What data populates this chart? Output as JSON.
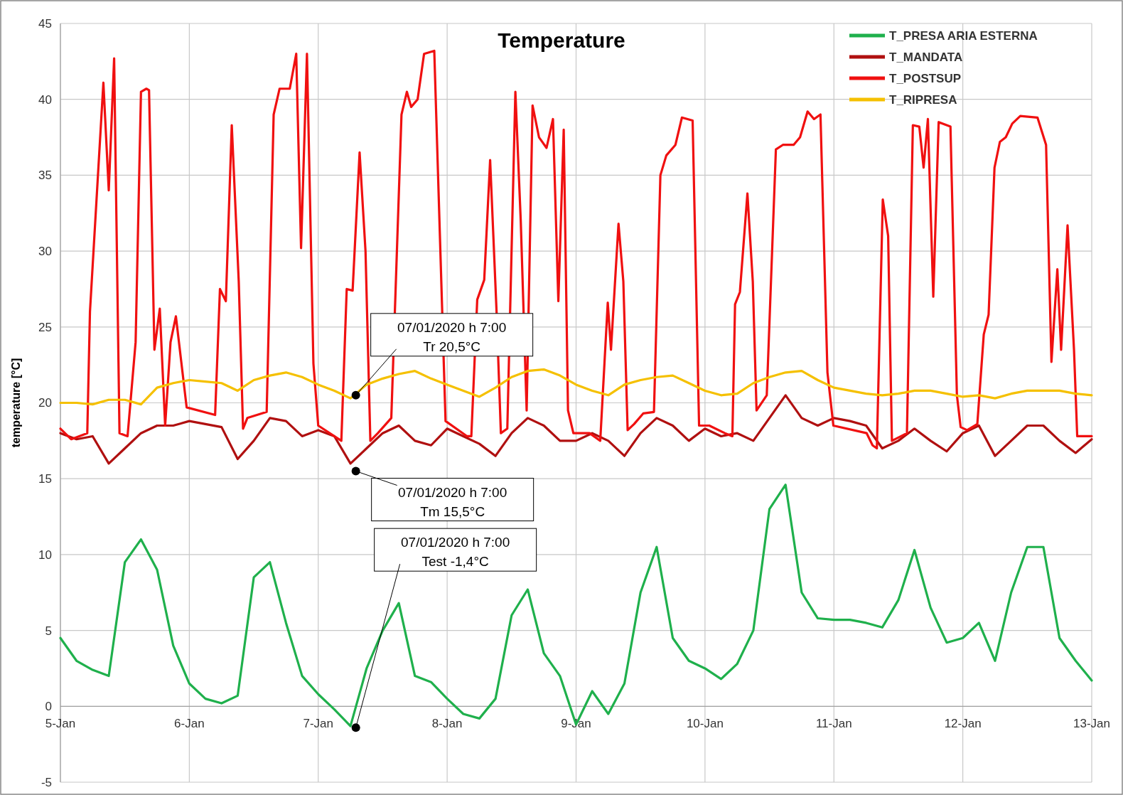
{
  "chart_data": {
    "type": "line",
    "title": "Temperature",
    "ylabel": "temperature [°C]",
    "x": [
      "2020-01-05T00:00",
      "2020-01-05T03:00",
      "2020-01-05T06:00",
      "2020-01-05T09:00",
      "2020-01-05T12:00",
      "2020-01-05T15:00",
      "2020-01-05T18:00",
      "2020-01-05T21:00",
      "2020-01-06T00:00",
      "2020-01-06T03:00",
      "2020-01-06T06:00",
      "2020-01-06T09:00",
      "2020-01-06T12:00",
      "2020-01-06T15:00",
      "2020-01-06T18:00",
      "2020-01-06T21:00",
      "2020-01-07T00:00",
      "2020-01-07T03:00",
      "2020-01-07T06:00",
      "2020-01-07T09:00",
      "2020-01-07T12:00",
      "2020-01-07T15:00",
      "2020-01-07T18:00",
      "2020-01-07T21:00",
      "2020-01-08T00:00",
      "2020-01-08T03:00",
      "2020-01-08T06:00",
      "2020-01-08T09:00",
      "2020-01-08T12:00",
      "2020-01-08T15:00",
      "2020-01-08T18:00",
      "2020-01-08T21:00",
      "2020-01-09T00:00",
      "2020-01-09T03:00",
      "2020-01-09T06:00",
      "2020-01-09T09:00",
      "2020-01-09T12:00",
      "2020-01-09T15:00",
      "2020-01-09T18:00",
      "2020-01-09T21:00",
      "2020-01-10T00:00",
      "2020-01-10T03:00",
      "2020-01-10T06:00",
      "2020-01-10T09:00",
      "2020-01-10T12:00",
      "2020-01-10T15:00",
      "2020-01-10T18:00",
      "2020-01-10T21:00",
      "2020-01-11T00:00",
      "2020-01-11T03:00",
      "2020-01-11T06:00",
      "2020-01-11T09:00",
      "2020-01-11T12:00",
      "2020-01-11T15:00",
      "2020-01-11T18:00",
      "2020-01-11T21:00",
      "2020-01-12T00:00",
      "2020-01-12T03:00",
      "2020-01-12T06:00",
      "2020-01-12T09:00",
      "2020-01-12T12:00",
      "2020-01-12T15:00",
      "2020-01-12T18:00",
      "2020-01-12T21:00",
      "2020-01-13T00:00"
    ],
    "series": [
      {
        "name": "T_PRESA ARIA ESTERNA",
        "color": "#1fb04c",
        "values": [
          4.5,
          3.0,
          2.4,
          2.0,
          9.5,
          11.0,
          9.0,
          4.0,
          1.5,
          0.5,
          0.2,
          0.7,
          8.5,
          9.5,
          5.5,
          2.0,
          0.8,
          -0.2,
          -1.3,
          2.5,
          5.0,
          6.8,
          2.0,
          1.6,
          0.5,
          -0.5,
          -0.8,
          0.5,
          6.0,
          7.7,
          3.5,
          2.0,
          -1.2,
          1.0,
          -0.5,
          1.5,
          7.5,
          10.5,
          4.5,
          3.0,
          2.5,
          1.8,
          2.8,
          5.0,
          13.0,
          14.6,
          7.5,
          5.8,
          5.7,
          5.7,
          5.5,
          5.2,
          7.0,
          10.3,
          6.5,
          4.2,
          4.5,
          5.5,
          3.0,
          7.5,
          10.5,
          10.5,
          4.5,
          3.0,
          1.7
        ]
      },
      {
        "name": "T_MANDATA",
        "color": "#b01010",
        "values": [
          18.0,
          17.6,
          17.8,
          16.0,
          17.0,
          18.0,
          18.5,
          18.5,
          18.8,
          18.6,
          18.4,
          16.3,
          17.5,
          19.0,
          18.8,
          17.8,
          18.2,
          17.8,
          16.0,
          17.0,
          18.0,
          18.5,
          17.5,
          17.2,
          18.3,
          17.8,
          17.3,
          16.5,
          18.0,
          19.0,
          18.5,
          17.5,
          17.5,
          18.0,
          17.5,
          16.5,
          18.0,
          19.0,
          18.5,
          17.5,
          18.3,
          17.8,
          18.0,
          17.5,
          19.0,
          20.5,
          19.0,
          18.5,
          19.0,
          18.8,
          18.5,
          17.0,
          17.5,
          18.3,
          17.5,
          16.8,
          18.0,
          18.5,
          16.5,
          17.5,
          18.5,
          18.5,
          17.5,
          16.7,
          17.6
        ]
      },
      {
        "name": "T_POSTSUP",
        "color": "#f01010",
        "x": [
          "2020-01-05T00:00",
          "2020-01-05T02:00",
          "2020-01-05T05:00",
          "2020-01-05T05:30",
          "2020-01-05T08:00",
          "2020-01-05T09:00",
          "2020-01-05T10:00",
          "2020-01-05T11:00",
          "2020-01-05T12:30",
          "2020-01-05T14:00",
          "2020-01-05T15:00",
          "2020-01-05T16:00",
          "2020-01-05T16:30",
          "2020-01-05T17:30",
          "2020-01-05T18:30",
          "2020-01-05T19:30",
          "2020-01-05T20:30",
          "2020-01-05T21:30",
          "2020-01-05T23:30",
          "2020-01-06T04:48",
          "2020-01-06T05:42",
          "2020-01-06T06:48",
          "2020-01-06T07:54",
          "2020-01-06T09:12",
          "2020-01-06T10:00",
          "2020-01-06T10:48",
          "2020-01-06T14:24",
          "2020-01-06T15:42",
          "2020-01-06T16:48",
          "2020-01-06T18:42",
          "2020-01-06T19:54",
          "2020-01-06T20:48",
          "2020-01-06T21:54",
          "2020-01-06T23:06",
          "2020-01-07T00:00",
          "2020-01-07T04:18",
          "2020-01-07T05:18",
          "2020-01-07T06:24",
          "2020-01-07T07:42",
          "2020-01-07T08:48",
          "2020-01-07T09:42",
          "2020-01-07T11:06",
          "2020-01-07T13:36",
          "2020-01-07T15:30",
          "2020-01-07T16:30",
          "2020-01-07T17:18",
          "2020-01-07T18:30",
          "2020-01-07T19:42",
          "2020-01-07T21:36",
          "2020-01-07T23:42",
          "2020-01-08T03:42",
          "2020-01-08T04:30",
          "2020-01-08T05:36",
          "2020-01-08T06:54",
          "2020-01-08T08:00",
          "2020-01-08T09:12",
          "2020-01-08T10:00",
          "2020-01-08T11:12",
          "2020-01-08T12:42",
          "2020-01-08T13:42",
          "2020-01-08T14:48",
          "2020-01-08T15:54",
          "2020-01-08T17:06",
          "2020-01-08T18:30",
          "2020-01-08T19:42",
          "2020-01-08T20:42",
          "2020-01-08T21:42",
          "2020-01-08T22:30",
          "2020-01-08T23:30",
          "2020-01-09T02:30",
          "2020-01-09T04:30",
          "2020-01-09T05:54",
          "2020-01-09T06:30",
          "2020-01-09T07:54",
          "2020-01-09T08:48",
          "2020-01-09T09:36",
          "2020-01-09T10:48",
          "2020-01-09T12:30",
          "2020-01-09T14:30",
          "2020-01-09T15:42",
          "2020-01-09T16:48",
          "2020-01-09T18:30",
          "2020-01-09T19:42",
          "2020-01-09T21:42",
          "2020-01-09T22:54",
          "2020-01-10T00:48",
          "2020-01-10T03:42",
          "2020-01-10T05:06",
          "2020-01-10T05:36",
          "2020-01-10T06:30",
          "2020-01-10T07:54",
          "2020-01-10T08:54",
          "2020-01-10T09:36",
          "2020-01-10T11:30",
          "2020-01-10T13:12",
          "2020-01-10T14:30",
          "2020-01-10T16:30",
          "2020-01-10T17:42",
          "2020-01-10T19:06",
          "2020-01-10T20:18",
          "2020-01-10T21:30",
          "2020-01-10T22:48",
          "2020-01-10T23:54",
          "2020-01-11T06:06",
          "2020-01-11T07:12",
          "2020-01-11T08:00",
          "2020-01-11T09:06",
          "2020-01-11T10:06",
          "2020-01-11T10:48",
          "2020-01-11T13:36",
          "2020-01-11T14:42",
          "2020-01-11T15:54",
          "2020-01-11T16:42",
          "2020-01-11T17:30",
          "2020-01-11T18:30",
          "2020-01-11T19:30",
          "2020-01-11T21:42",
          "2020-01-11T22:54",
          "2020-01-11T23:36",
          "2020-01-12T00:48",
          "2020-01-12T02:42",
          "2020-01-12T03:54",
          "2020-01-12T04:48",
          "2020-01-12T05:54",
          "2020-01-12T06:54",
          "2020-01-12T08:00",
          "2020-01-12T09:12",
          "2020-01-12T10:42",
          "2020-01-12T13:54",
          "2020-01-12T15:30",
          "2020-01-12T16:30",
          "2020-01-12T17:36",
          "2020-01-12T18:18",
          "2020-01-12T19:30",
          "2020-01-12T20:42",
          "2020-01-12T21:18",
          "2020-01-13T00:00"
        ],
        "values": [
          18.3,
          17.6,
          18.0,
          26,
          41.1,
          34,
          42.7,
          18,
          17.8,
          24,
          40.5,
          40.7,
          40.6,
          23.5,
          26.2,
          18.5,
          24,
          25.7,
          19.7,
          19.2,
          27.5,
          26.7,
          38.3,
          28,
          18.3,
          19,
          19.4,
          39,
          40.7,
          40.7,
          43,
          30.2,
          43,
          22.6,
          18.5,
          17.5,
          27.5,
          27.4,
          36.5,
          30,
          17.5,
          18,
          19,
          39,
          40.5,
          39.5,
          40,
          43,
          43.2,
          18.8,
          17.8,
          17.8,
          26.8,
          28.1,
          36,
          26,
          18,
          18.3,
          40.5,
          32,
          19.5,
          39.6,
          37.5,
          36.8,
          38.7,
          26.7,
          38,
          19.5,
          18,
          18,
          17.5,
          26.6,
          23.5,
          31.8,
          28,
          18.2,
          18.6,
          19.3,
          19.4,
          35,
          36.3,
          37,
          38.8,
          38.6,
          18.5,
          18.5,
          18,
          17.8,
          26.5,
          27.3,
          33.8,
          28,
          19.5,
          20.5,
          36.7,
          37.0,
          37.0,
          37.5,
          39.2,
          38.7,
          39,
          22,
          18.5,
          18,
          17.2,
          17,
          33.4,
          31,
          17.5,
          18,
          38.3,
          38.2,
          35.5,
          38.7,
          27,
          38.5,
          38.2,
          20.5,
          18.4,
          18.2,
          18.6,
          24.5,
          25.8,
          35.5,
          37.2,
          37.5,
          38.4,
          38.9,
          38.8,
          37,
          22.7,
          28.8,
          23.5,
          31.7,
          23.5,
          17.8,
          17.8
        ]
      },
      {
        "name": "T_RIPRESA",
        "color": "#f5c000",
        "values": [
          20.0,
          20.0,
          19.9,
          20.2,
          20.2,
          19.9,
          21.0,
          21.3,
          21.5,
          21.4,
          21.3,
          20.8,
          21.5,
          21.8,
          22.0,
          21.7,
          21.2,
          20.8,
          20.3,
          21.2,
          21.6,
          21.9,
          22.1,
          21.6,
          21.2,
          20.8,
          20.4,
          21.0,
          21.7,
          22.1,
          22.2,
          21.8,
          21.2,
          20.8,
          20.5,
          21.2,
          21.5,
          21.7,
          21.8,
          21.3,
          20.8,
          20.5,
          20.6,
          21.3,
          21.7,
          22.0,
          22.1,
          21.5,
          21.0,
          20.8,
          20.6,
          20.5,
          20.6,
          20.8,
          20.8,
          20.6,
          20.4,
          20.5,
          20.3,
          20.6,
          20.8,
          20.8,
          20.8,
          20.6,
          20.5
        ]
      }
    ],
    "xlim": [
      "2020-01-05",
      "2020-01-13"
    ],
    "xticks": [
      {
        "value": "2020-01-05",
        "label": "5-Jan"
      },
      {
        "value": "2020-01-06",
        "label": "6-Jan"
      },
      {
        "value": "2020-01-07",
        "label": "7-Jan"
      },
      {
        "value": "2020-01-08",
        "label": "8-Jan"
      },
      {
        "value": "2020-01-09",
        "label": "9-Jan"
      },
      {
        "value": "2020-01-10",
        "label": "10-Jan"
      },
      {
        "value": "2020-01-11",
        "label": "11-Jan"
      },
      {
        "value": "2020-01-12",
        "label": "12-Jan"
      },
      {
        "value": "2020-01-13",
        "label": "13-Jan"
      }
    ],
    "ylim": [
      -5,
      45
    ],
    "yticks": [
      -5,
      0,
      5,
      10,
      15,
      20,
      25,
      30,
      35,
      40,
      45
    ],
    "grid": true,
    "legend": "top right",
    "marker": "none",
    "line_style": "solid",
    "annotations": [
      {
        "text": "07/01/2020 h 7:00\nTr 20,5°C",
        "x": "2020-01-07T07:00",
        "y": 20.5
      },
      {
        "text": "07/01/2020 h 7:00\nTm 15,5°C",
        "x": "2020-01-07T07:00",
        "y": 15.5
      },
      {
        "text": "07/01/2020 h 7:00\nTest -1,4°C",
        "x": "2020-01-07T07:00",
        "y": -1.4
      }
    ]
  }
}
